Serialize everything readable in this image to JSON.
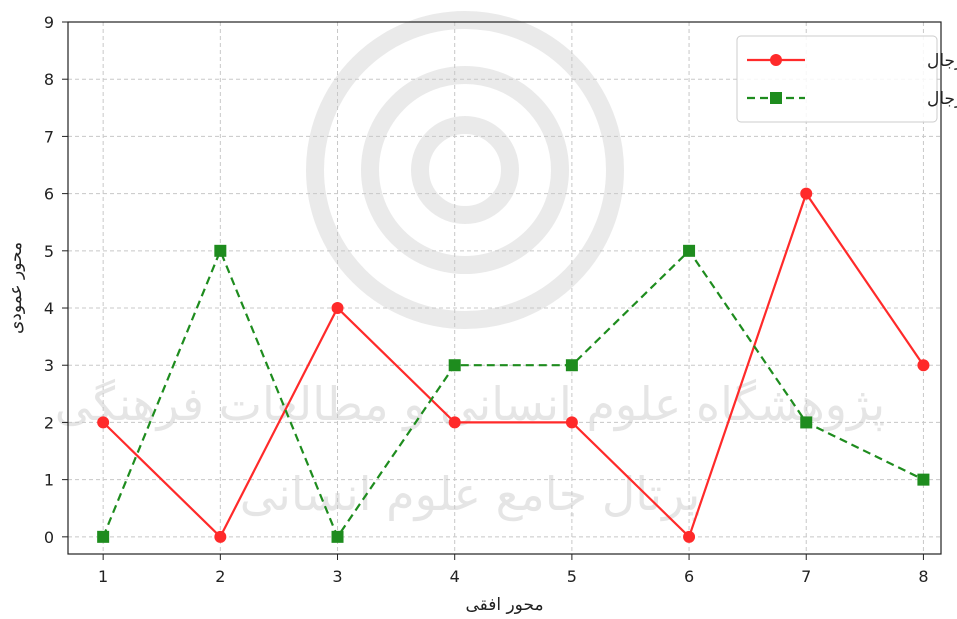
{
  "chart_data": {
    "type": "line",
    "x": [
      1,
      2,
      3,
      4,
      5,
      6,
      7,
      8
    ],
    "series": [
      {
        "name": "تاديب الرجال",
        "values": [
          2,
          0,
          4,
          2,
          2,
          0,
          6,
          3
        ],
        "color": "#ff2a2a",
        "line_style": "solid",
        "marker": "circle"
      },
      {
        "name": "معايب الرجال",
        "values": [
          0,
          5,
          0,
          3,
          3,
          5,
          2,
          1
        ],
        "color": "#1e8c1e",
        "line_style": "dashed",
        "marker": "square"
      }
    ],
    "xlabel": "محور افقی",
    "ylabel": "محور عمودی",
    "xlim": [
      0.7,
      8.15
    ],
    "ylim": [
      -0.3,
      9
    ],
    "x_ticks": [
      1,
      2,
      3,
      4,
      5,
      6,
      7,
      8
    ],
    "y_ticks": [
      0,
      1,
      2,
      3,
      4,
      5,
      6,
      7,
      8,
      9
    ],
    "grid": true,
    "legend_position": "top-right",
    "watermark": {
      "line1": "پژوهشگاه علوم انسانی و مطالعات فرهنگی",
      "line2": "پرتال جامع علوم انسانی"
    }
  }
}
